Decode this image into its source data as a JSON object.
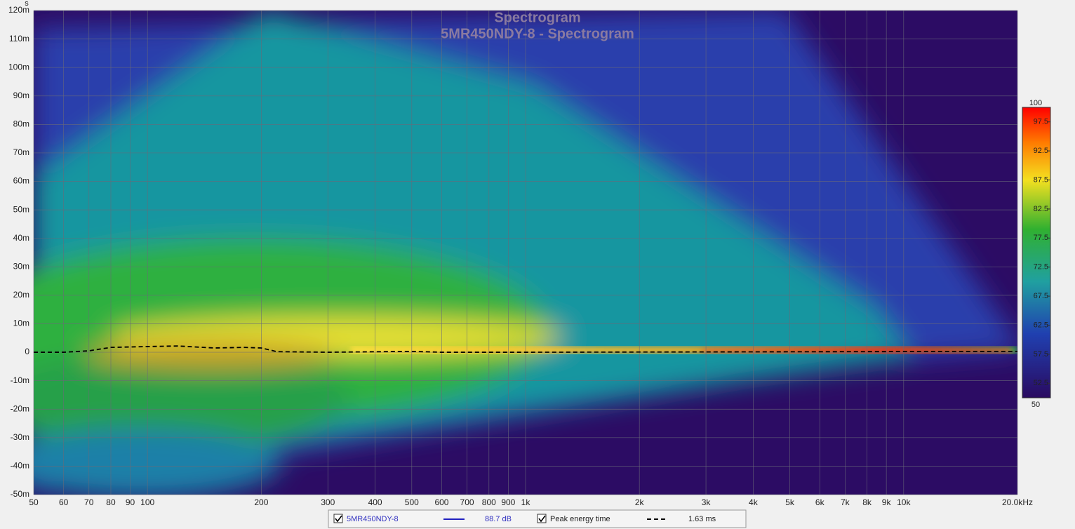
{
  "chart_data": {
    "type": "spectrogram",
    "title": "Spectrogram",
    "subtitle": "5MR450NDY-8 - Spectrogram",
    "y_unit": "s",
    "xscale": "log",
    "grid": true,
    "xlim": [
      50,
      20000
    ],
    "xticks": [
      50,
      60,
      70,
      80,
      90,
      100,
      200,
      300,
      400,
      500,
      600,
      700,
      800,
      900,
      {
        "value": 1000,
        "label": "1k"
      },
      {
        "value": 2000,
        "label": "2k"
      },
      {
        "value": 3000,
        "label": "3k"
      },
      {
        "value": 4000,
        "label": "4k"
      },
      {
        "value": 5000,
        "label": "5k"
      },
      {
        "value": 6000,
        "label": "6k"
      },
      {
        "value": 7000,
        "label": "7k"
      },
      {
        "value": 8000,
        "label": "8k"
      },
      {
        "value": 9000,
        "label": "9k"
      },
      {
        "value": 10000,
        "label": "10k"
      },
      {
        "value": 20000,
        "label": "20.0kHz"
      }
    ],
    "ylim": [
      -0.05,
      0.12
    ],
    "yticks": [
      {
        "value": -0.05,
        "label": "-50m"
      },
      {
        "value": -0.04,
        "label": "-40m"
      },
      {
        "value": -0.03,
        "label": "-30m"
      },
      {
        "value": -0.02,
        "label": "-20m"
      },
      {
        "value": -0.01,
        "label": "-10m"
      },
      0,
      {
        "value": 0.01,
        "label": "10m"
      },
      {
        "value": 0.02,
        "label": "20m"
      },
      {
        "value": 0.03,
        "label": "30m"
      },
      {
        "value": 0.04,
        "label": "40m"
      },
      {
        "value": 0.05,
        "label": "50m"
      },
      {
        "value": 0.06,
        "label": "60m"
      },
      {
        "value": 0.07,
        "label": "70m"
      },
      {
        "value": 0.08,
        "label": "80m"
      },
      {
        "value": 0.09,
        "label": "90m"
      },
      {
        "value": 0.1,
        "label": "100m"
      },
      {
        "value": 0.11,
        "label": "110m"
      },
      {
        "value": 0.12,
        "label": "120m"
      }
    ],
    "zlim": [
      50,
      100
    ],
    "zticks": [
      100,
      97.5,
      92.5,
      87.5,
      82.5,
      77.5,
      72.5,
      67.5,
      62.5,
      57.5,
      52.5,
      50
    ],
    "series": [
      {
        "name": "Peak energy time",
        "color": "#000000",
        "x": [
          50,
          60,
          70,
          80,
          100,
          120,
          150,
          180,
          200,
          220,
          300,
          500,
          600,
          1000,
          20000
        ],
        "values": [
          0,
          0,
          0.0005,
          0.0017,
          0.002,
          0.0022,
          0.0015,
          0.0017,
          0.0015,
          0.0002,
          0,
          0.0003,
          0,
          0,
          0.0003
        ]
      }
    ],
    "legend": [
      {
        "label": "5MR450NDY-8",
        "color": "#2020c0",
        "value": "88.7 dB"
      },
      {
        "label": "Peak energy time",
        "color": "#000000",
        "value": "1.63 ms"
      }
    ]
  }
}
